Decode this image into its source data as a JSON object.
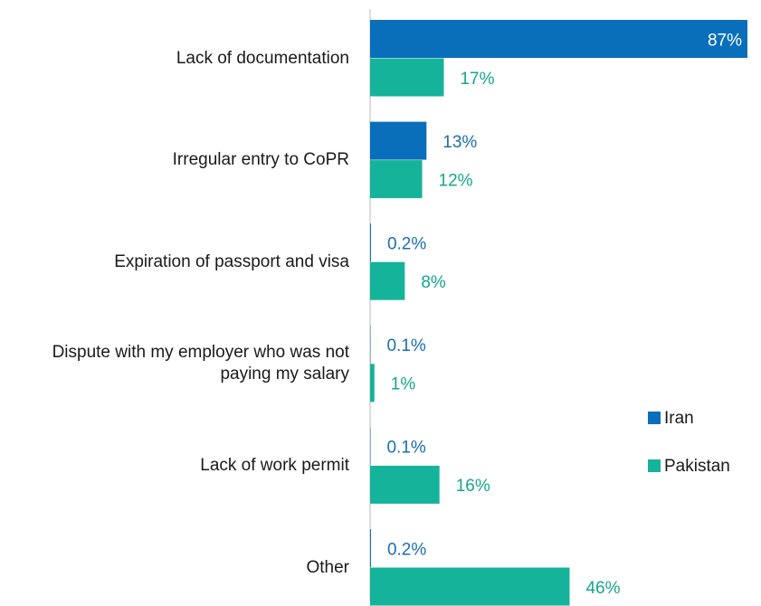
{
  "chart_data": {
    "type": "bar",
    "orientation": "horizontal",
    "categories": [
      "Lack of documentation",
      "Irregular entry to CoPR",
      "Expiration of passport and visa",
      "Dispute with my employer who was not paying my salary",
      "Lack of work permit",
      "Other"
    ],
    "series": [
      {
        "name": "Iran",
        "color": "#0a6fba",
        "label_color": "#1a6fb0",
        "values": [
          87,
          13,
          0.2,
          0.1,
          0.1,
          0.2
        ],
        "value_labels": [
          "87%",
          "13%",
          "0.2%",
          "0.1%",
          "0.1%",
          "0.2%"
        ]
      },
      {
        "name": "Pakistan",
        "color": "#14b39a",
        "label_color": "#14a68f",
        "values": [
          17,
          12,
          8,
          1,
          16,
          46
        ],
        "value_labels": [
          "17%",
          "12%",
          "8%",
          "1%",
          "16%",
          "46%"
        ]
      }
    ],
    "xlim": [
      0,
      87
    ],
    "legend": "right"
  }
}
